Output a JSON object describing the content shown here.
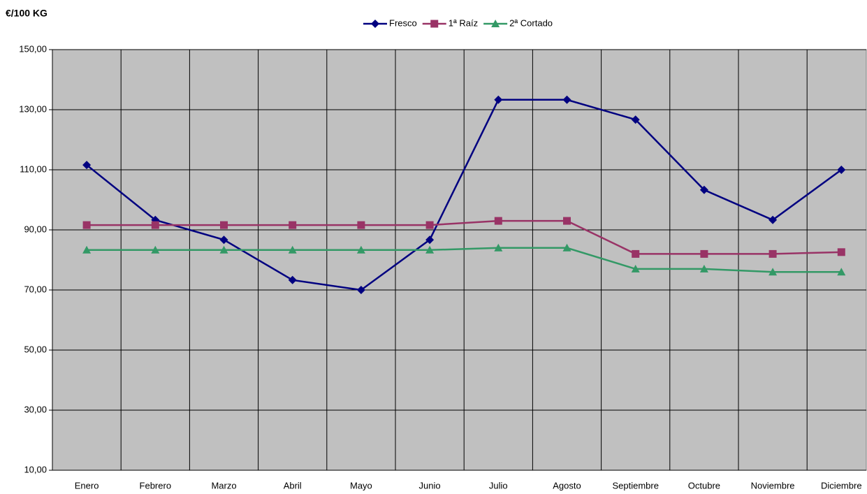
{
  "chart_data": {
    "type": "line",
    "ylabel": "€/100 KG",
    "categories": [
      "Enero",
      "Febrero",
      "Marzo",
      "Abril",
      "Mayo",
      "Junio",
      "Julio",
      "Agosto",
      "Septiembre",
      "Octubre",
      "Noviembre",
      "Diciembre"
    ],
    "series": [
      {
        "name": "Fresco",
        "color": "#000080",
        "marker": "diamond",
        "values": [
          111.6,
          93.3,
          86.7,
          73.3,
          70.0,
          86.7,
          133.3,
          133.3,
          126.7,
          103.3,
          93.3,
          110.0
        ]
      },
      {
        "name": "1ª Raíz",
        "color": "#993366",
        "marker": "square",
        "values": [
          91.6,
          91.6,
          91.6,
          91.6,
          91.6,
          91.6,
          93.0,
          93.0,
          82.0,
          82.0,
          82.0,
          82.6
        ]
      },
      {
        "name": "2ª Cortado",
        "color": "#339966",
        "marker": "triangle",
        "values": [
          83.3,
          83.3,
          83.3,
          83.3,
          83.3,
          83.3,
          84.0,
          84.0,
          77.0,
          77.0,
          76.0,
          76.0
        ]
      }
    ],
    "ylim": [
      10,
      150
    ],
    "yticks": [
      {
        "value": 10,
        "label": "10,00"
      },
      {
        "value": 30,
        "label": "30,00"
      },
      {
        "value": 50,
        "label": "50,00"
      },
      {
        "value": 70,
        "label": "70,00"
      },
      {
        "value": 90,
        "label": "90,00"
      },
      {
        "value": 110,
        "label": "110,00"
      },
      {
        "value": 130,
        "label": "130,00"
      },
      {
        "value": 150,
        "label": "150,00"
      }
    ],
    "grid": true,
    "legend": "top"
  }
}
